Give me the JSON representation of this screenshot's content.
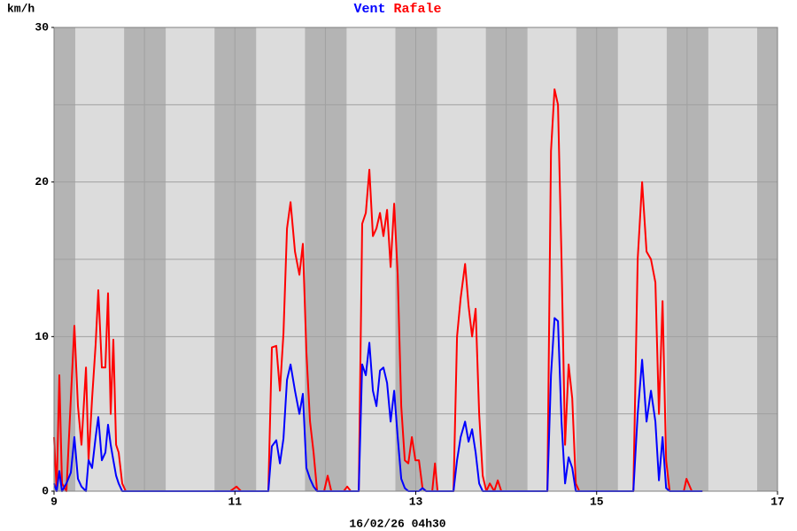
{
  "chart_data": {
    "type": "line",
    "y_label": "km/h",
    "x_label": "16/02/26 04h30",
    "xlim": [
      9,
      17
    ],
    "ylim": [
      0,
      30
    ],
    "xticks": [
      9,
      11,
      13,
      15,
      17
    ],
    "yticks": [
      0,
      10,
      20,
      30
    ],
    "grid_y": [
      5,
      10,
      15,
      20,
      25
    ],
    "grid_x": [
      10,
      11,
      12,
      13,
      14,
      15,
      16
    ],
    "night_bands": [
      [
        9,
        9.235
      ],
      [
        9.775,
        10.235
      ],
      [
        10.775,
        11.235
      ],
      [
        11.775,
        12.235
      ],
      [
        12.775,
        13.235
      ],
      [
        13.775,
        14.235
      ],
      [
        14.775,
        15.235
      ],
      [
        15.775,
        16.235
      ],
      [
        16.775,
        17
      ]
    ],
    "x": [
      9.0,
      9.029,
      9.059,
      9.088,
      9.137,
      9.186,
      9.225,
      9.264,
      9.304,
      9.353,
      9.382,
      9.421,
      9.46,
      9.49,
      9.529,
      9.568,
      9.597,
      9.627,
      9.656,
      9.686,
      9.715,
      9.754,
      9.793,
      10.949,
      11.018,
      11.067,
      11.37,
      11.409,
      11.458,
      11.498,
      11.537,
      11.576,
      11.615,
      11.664,
      11.713,
      11.752,
      11.791,
      11.831,
      11.87,
      11.909,
      11.987,
      12.026,
      12.066,
      12.203,
      12.242,
      12.281,
      12.369,
      12.408,
      12.448,
      12.487,
      12.526,
      12.565,
      12.604,
      12.643,
      12.683,
      12.722,
      12.761,
      12.8,
      12.839,
      12.879,
      12.918,
      12.957,
      12.996,
      13.035,
      13.074,
      13.114,
      13.182,
      13.212,
      13.241,
      13.417,
      13.456,
      13.496,
      13.545,
      13.584,
      13.623,
      13.662,
      13.701,
      13.74,
      13.78,
      13.819,
      13.868,
      13.907,
      13.946,
      14.455,
      14.495,
      14.534,
      14.573,
      14.612,
      14.651,
      14.69,
      14.73,
      14.769,
      14.808,
      15.406,
      15.454,
      15.503,
      15.552,
      15.601,
      15.65,
      15.689,
      15.729,
      15.768,
      15.807,
      15.964,
      15.993,
      16.052,
      16.17
    ],
    "series": [
      {
        "name": "Vent",
        "color": "#0000ff",
        "values": [
          0.5,
          0,
          1.3,
          0,
          0.5,
          1.2,
          3.5,
          0.8,
          0.3,
          0,
          2,
          1.5,
          3.5,
          4.8,
          2,
          2.5,
          4.3,
          3,
          2,
          1,
          0.5,
          0,
          0,
          0,
          0,
          0,
          0,
          2.9,
          3.3,
          1.8,
          3.4,
          7.2,
          8.2,
          6.5,
          5,
          6.3,
          1.5,
          0.8,
          0.3,
          0,
          0,
          0,
          0,
          0,
          0,
          0,
          0,
          8.2,
          7.5,
          9.6,
          6.5,
          5.5,
          7.8,
          8,
          7,
          4.5,
          6.5,
          3.5,
          0.8,
          0.2,
          0,
          0,
          0,
          0,
          0.2,
          0,
          0,
          0,
          0,
          0,
          2,
          3.5,
          4.5,
          3.2,
          4,
          2.5,
          0.5,
          0,
          0,
          0,
          0,
          0,
          0,
          0,
          7.5,
          11.2,
          11,
          4.5,
          0.5,
          2.2,
          1.5,
          0,
          0,
          0,
          5,
          8.5,
          4.5,
          6.5,
          4.5,
          0.7,
          3.5,
          0.2,
          0,
          0,
          0,
          0,
          0
        ]
      },
      {
        "name": "Rafale",
        "color": "#ff0000",
        "values": [
          3.5,
          0,
          7.5,
          0.5,
          0,
          6,
          10.7,
          5.5,
          3,
          8,
          2,
          6,
          9.5,
          13,
          8,
          8,
          12.8,
          5,
          9.8,
          3,
          2.5,
          0.5,
          0,
          0,
          0.3,
          0,
          0,
          9.3,
          9.4,
          6.5,
          10.2,
          17,
          18.7,
          15.5,
          14,
          16,
          9,
          4.5,
          2.5,
          0,
          0,
          1,
          0,
          0,
          0.3,
          0,
          0,
          17.3,
          18,
          20.8,
          16.5,
          17,
          18,
          16.5,
          18.2,
          14.5,
          18.6,
          14,
          5.5,
          2,
          1.8,
          3.5,
          2,
          2,
          0.2,
          0,
          0,
          1.8,
          0,
          0,
          10,
          12.5,
          14.7,
          12,
          10,
          11.8,
          5,
          1,
          0,
          0.5,
          0,
          0.7,
          0,
          0,
          22,
          26,
          25,
          15,
          3,
          8.2,
          6,
          0.5,
          0,
          0,
          15,
          20,
          15.5,
          15,
          13.5,
          5,
          12.3,
          2,
          0,
          0,
          0.8,
          0,
          0
        ]
      }
    ]
  }
}
